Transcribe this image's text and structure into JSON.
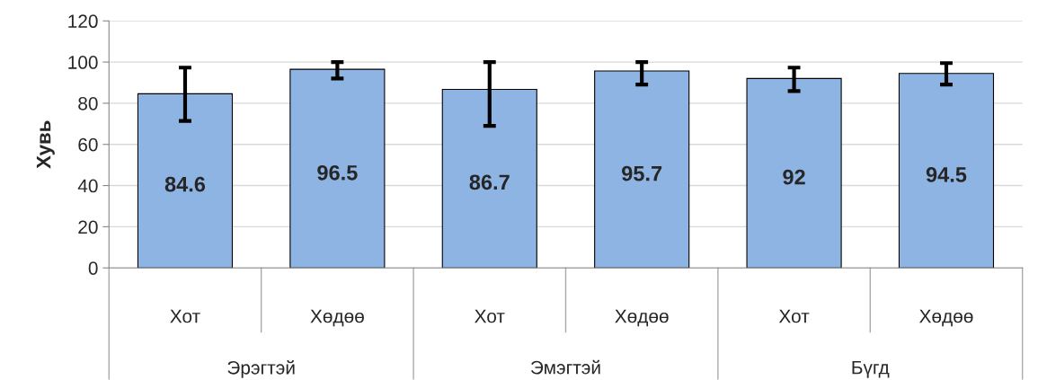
{
  "chart_data": {
    "type": "bar",
    "ylabel": "Хувь",
    "categories": [
      "Хот",
      "Хөдөө",
      "Хот",
      "Хөдөө",
      "Хот",
      "Хөдөө"
    ],
    "values": [
      84.6,
      96.5,
      86.7,
      95.7,
      92,
      94.5
    ],
    "errors": [
      [
        71.4,
        97.3
      ],
      [
        92,
        100
      ],
      [
        69,
        100
      ],
      [
        89.1,
        100
      ],
      [
        85.9,
        97.3
      ],
      [
        89.1,
        99.5
      ]
    ],
    "color": "#8eb4e3",
    "data_labels": true,
    "annotations": [
      "Эрэгтэй",
      "Эмэгтэй",
      "Бүгд"
    ],
    "ylim": [
      0,
      120
    ],
    "yticks": [
      0,
      20,
      40,
      60,
      80,
      100,
      120
    ],
    "grid": "y",
    "legend": false
  }
}
